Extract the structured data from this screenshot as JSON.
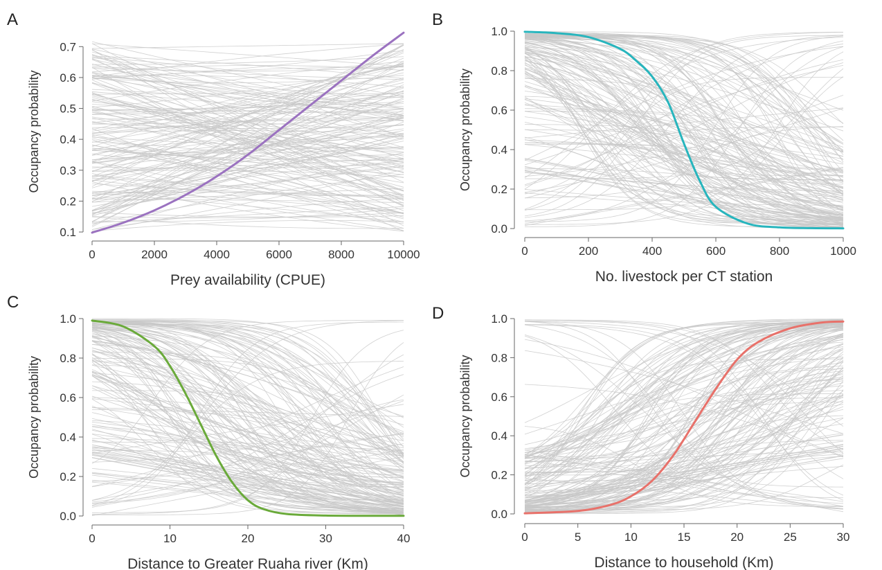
{
  "chart_data": [
    {
      "type": "line",
      "panel": "A",
      "xlabel": "Prey availability (CPUE)",
      "ylabel": "Occupancy probability",
      "xlim": [
        0,
        10000
      ],
      "ylim": [
        0.1,
        0.75
      ],
      "xticks": [
        "0",
        "2000",
        "4000",
        "6000",
        "8000",
        "10000"
      ],
      "yticks": [
        "0.1",
        "0.2",
        "0.3",
        "0.4",
        "0.5",
        "0.6",
        "0.7"
      ],
      "xtick_values": [
        0,
        2000,
        4000,
        6000,
        8000,
        10000
      ],
      "ytick_values": [
        0.1,
        0.2,
        0.3,
        0.4,
        0.5,
        0.6,
        0.7
      ],
      "mean_color": "#9b72c0",
      "background_color": "#c8c8c8",
      "background_curves": "posterior draws (grey)",
      "series": [
        {
          "x": [
            0,
            1000,
            2000,
            3000,
            4000,
            5000,
            6000,
            7000,
            8000,
            9000,
            10000
          ],
          "values": [
            0.098,
            0.13,
            0.17,
            0.22,
            0.28,
            0.35,
            0.43,
            0.51,
            0.59,
            0.67,
            0.745
          ]
        }
      ]
    },
    {
      "type": "line",
      "panel": "B",
      "xlabel": "No. livestock per CT station",
      "ylabel": "Occupancy probability",
      "xlim": [
        0,
        1000
      ],
      "ylim": [
        0,
        1
      ],
      "xticks": [
        "0",
        "200",
        "400",
        "600",
        "800",
        "1000"
      ],
      "yticks": [
        "0.0",
        "0.2",
        "0.4",
        "0.6",
        "0.8",
        "1.0"
      ],
      "xtick_values": [
        0,
        200,
        400,
        600,
        800,
        1000
      ],
      "ytick_values": [
        0,
        0.2,
        0.4,
        0.6,
        0.8,
        1.0
      ],
      "mean_color": "#27b5bd",
      "background_color": "#c8c8c8",
      "background_curves": "posterior draws (grey)",
      "series": [
        {
          "x": [
            0,
            100,
            200,
            300,
            350,
            400,
            450,
            500,
            550,
            600,
            700,
            800,
            900,
            1000
          ],
          "values": [
            0.997,
            0.99,
            0.97,
            0.91,
            0.85,
            0.77,
            0.64,
            0.43,
            0.24,
            0.11,
            0.025,
            0.006,
            0.002,
            0.001
          ]
        }
      ]
    },
    {
      "type": "line",
      "panel": "C",
      "xlabel": "Distance to Greater Ruaha river (Km)",
      "ylabel": "Occupancy probability",
      "xlim": [
        0,
        40
      ],
      "ylim": [
        0,
        1
      ],
      "xticks": [
        "0",
        "10",
        "20",
        "30",
        "40"
      ],
      "yticks": [
        "0.0",
        "0.2",
        "0.4",
        "0.6",
        "0.8",
        "1.0"
      ],
      "xtick_values": [
        0,
        10,
        20,
        30,
        40
      ],
      "ytick_values": [
        0,
        0.2,
        0.4,
        0.6,
        0.8,
        1.0
      ],
      "mean_color": "#6aaa3a",
      "background_color": "#c8c8c8",
      "background_curves": "posterior draws (grey)",
      "series": [
        {
          "x": [
            0,
            4,
            8,
            10,
            12,
            14,
            16,
            18,
            20,
            22,
            25,
            30,
            35,
            40
          ],
          "values": [
            0.99,
            0.96,
            0.86,
            0.76,
            0.62,
            0.46,
            0.3,
            0.17,
            0.08,
            0.035,
            0.01,
            0.002,
            0.001,
            0.001
          ]
        }
      ]
    },
    {
      "type": "line",
      "panel": "D",
      "xlabel": "Distance to household (Km)",
      "ylabel": "Occupancy probability",
      "xlim": [
        0,
        30
      ],
      "ylim": [
        0,
        1
      ],
      "xticks": [
        "0",
        "5",
        "10",
        "15",
        "20",
        "25",
        "30"
      ],
      "yticks": [
        "0.0",
        "0.2",
        "0.4",
        "0.6",
        "0.8",
        "1.0"
      ],
      "xtick_values": [
        0,
        5,
        10,
        15,
        20,
        25,
        30
      ],
      "ytick_values": [
        0,
        0.2,
        0.4,
        0.6,
        0.8,
        1.0
      ],
      "mean_color": "#e8716a",
      "background_color": "#c8c8c8",
      "background_curves": "posterior draws (grey)",
      "series": [
        {
          "x": [
            0,
            5,
            8,
            10,
            12,
            14,
            16,
            18,
            20,
            22,
            25,
            28,
            30
          ],
          "values": [
            0.003,
            0.015,
            0.045,
            0.09,
            0.17,
            0.3,
            0.47,
            0.64,
            0.79,
            0.88,
            0.95,
            0.98,
            0.985
          ]
        }
      ]
    }
  ]
}
